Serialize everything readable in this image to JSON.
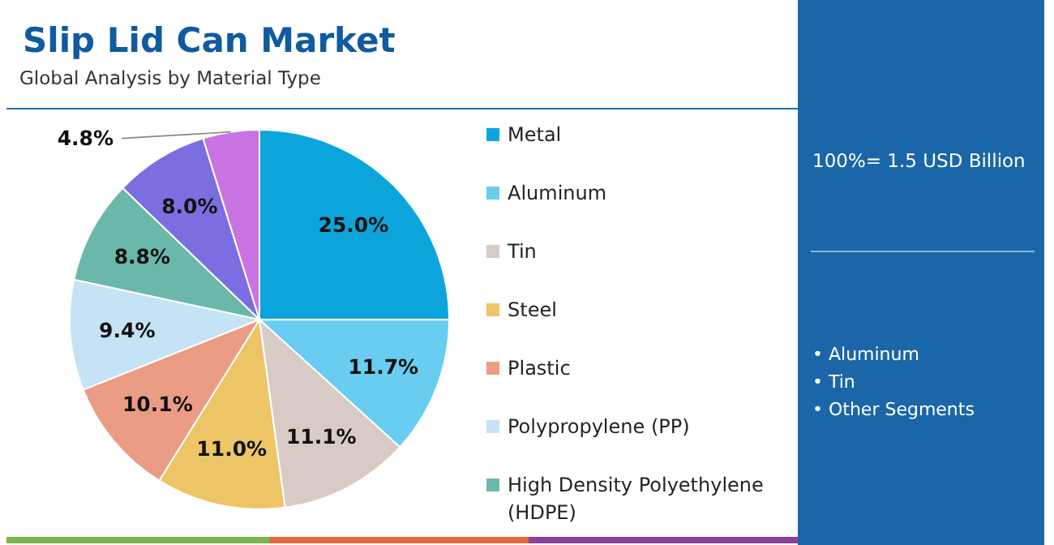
{
  "chart_data": {
    "type": "pie",
    "title": "Slip Lid Can Market",
    "subtitle": "Global Analysis by Material Type",
    "categories": [
      "Metal",
      "Aluminum",
      "Tin",
      "Steel",
      "Plastic",
      "Polypropylene (PP)",
      "High Density Polyethylene (HDPE)",
      null,
      null
    ],
    "values": [
      25.0,
      11.7,
      11.1,
      11.0,
      10.1,
      9.4,
      8.8,
      8.0,
      4.8
    ],
    "value_labels": [
      "25.0%",
      "11.7%",
      "11.1%",
      "11.0%",
      "10.1%",
      "9.4%",
      "8.8%",
      "8.0%",
      "4.8%"
    ],
    "colors": [
      "#0ba5dc",
      "#68cdf0",
      "#d8cbc6",
      "#edc466",
      "#eb9c84",
      "#c5e3f4",
      "#6ab8aa",
      "#7b6ee0",
      "#c774e2"
    ],
    "legend": "right",
    "annotations": [
      "100%= 1.5 USD Billion",
      "• Aluminum",
      "• Tin",
      "• Other Segments"
    ]
  }
}
